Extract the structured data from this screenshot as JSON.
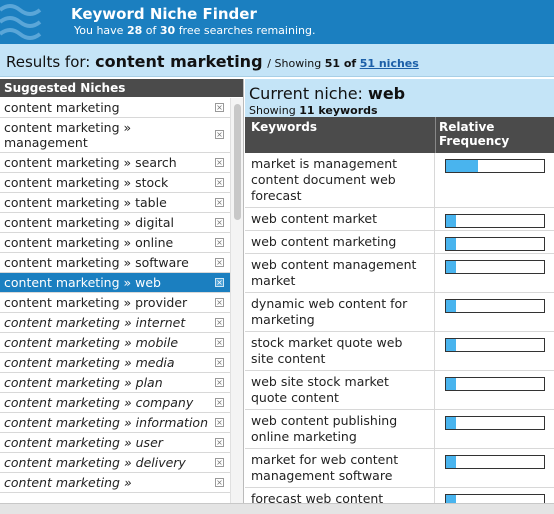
{
  "header": {
    "title": "Keyword Niche Finder",
    "sub_prefix": "You have",
    "used": "28",
    "of_word": "of",
    "total": "30",
    "sub_suffix": "free searches remaining.",
    "brand_color": "#1b7fc0"
  },
  "results": {
    "label": "Results for:",
    "term": "content marketing",
    "slash": "/",
    "showing_label": "Showing",
    "count": "51 of",
    "link": "51 niches"
  },
  "sidebar": {
    "header": "Suggested Niches",
    "remove_icon": "x-box-icon",
    "items": [
      {
        "label": "content marketing",
        "italic": false,
        "selected": false
      },
      {
        "label": "content marketing » management",
        "italic": false,
        "selected": false
      },
      {
        "label": "content marketing » search",
        "italic": false,
        "selected": false
      },
      {
        "label": "content marketing » stock",
        "italic": false,
        "selected": false
      },
      {
        "label": "content marketing » table",
        "italic": false,
        "selected": false
      },
      {
        "label": "content marketing » digital",
        "italic": false,
        "selected": false
      },
      {
        "label": "content marketing » online",
        "italic": false,
        "selected": false
      },
      {
        "label": "content marketing » software",
        "italic": false,
        "selected": false
      },
      {
        "label": "content marketing » web",
        "italic": false,
        "selected": true
      },
      {
        "label": "content marketing » provider",
        "italic": false,
        "selected": false
      },
      {
        "label": "content marketing » internet",
        "italic": true,
        "selected": false
      },
      {
        "label": "content marketing » mobile",
        "italic": true,
        "selected": false
      },
      {
        "label": "content marketing » media",
        "italic": true,
        "selected": false
      },
      {
        "label": "content marketing » plan",
        "italic": true,
        "selected": false
      },
      {
        "label": "content marketing » company",
        "italic": true,
        "selected": false
      },
      {
        "label": "content marketing » information",
        "italic": true,
        "selected": false
      },
      {
        "label": "content marketing » user",
        "italic": true,
        "selected": false
      },
      {
        "label": "content marketing » delivery",
        "italic": true,
        "selected": false
      },
      {
        "label": "content marketing »",
        "italic": true,
        "selected": false
      }
    ]
  },
  "current": {
    "label": "Current niche:",
    "niche": "web",
    "showing_label": "Showing",
    "count": "11 keywords"
  },
  "table": {
    "col_keywords": "Keywords",
    "col_freq": "Relative Frequency",
    "bar_color": "#49b4ee",
    "rows": [
      {
        "keyword": "market is management content document web forecast",
        "frequency": 0.33
      },
      {
        "keyword": "web content market",
        "frequency": 0.1
      },
      {
        "keyword": "web content marketing",
        "frequency": 0.1
      },
      {
        "keyword": "web content management market",
        "frequency": 0.1
      },
      {
        "keyword": "dynamic web content for marketing",
        "frequency": 0.1
      },
      {
        "keyword": "stock market quote web site content",
        "frequency": 0.1
      },
      {
        "keyword": "web site stock market quote content",
        "frequency": 0.1
      },
      {
        "keyword": "web content publishing online marketing",
        "frequency": 0.1
      },
      {
        "keyword": "market for web content management software",
        "frequency": 0.1
      },
      {
        "keyword": "forecast web content",
        "frequency": 0.1
      }
    ]
  }
}
